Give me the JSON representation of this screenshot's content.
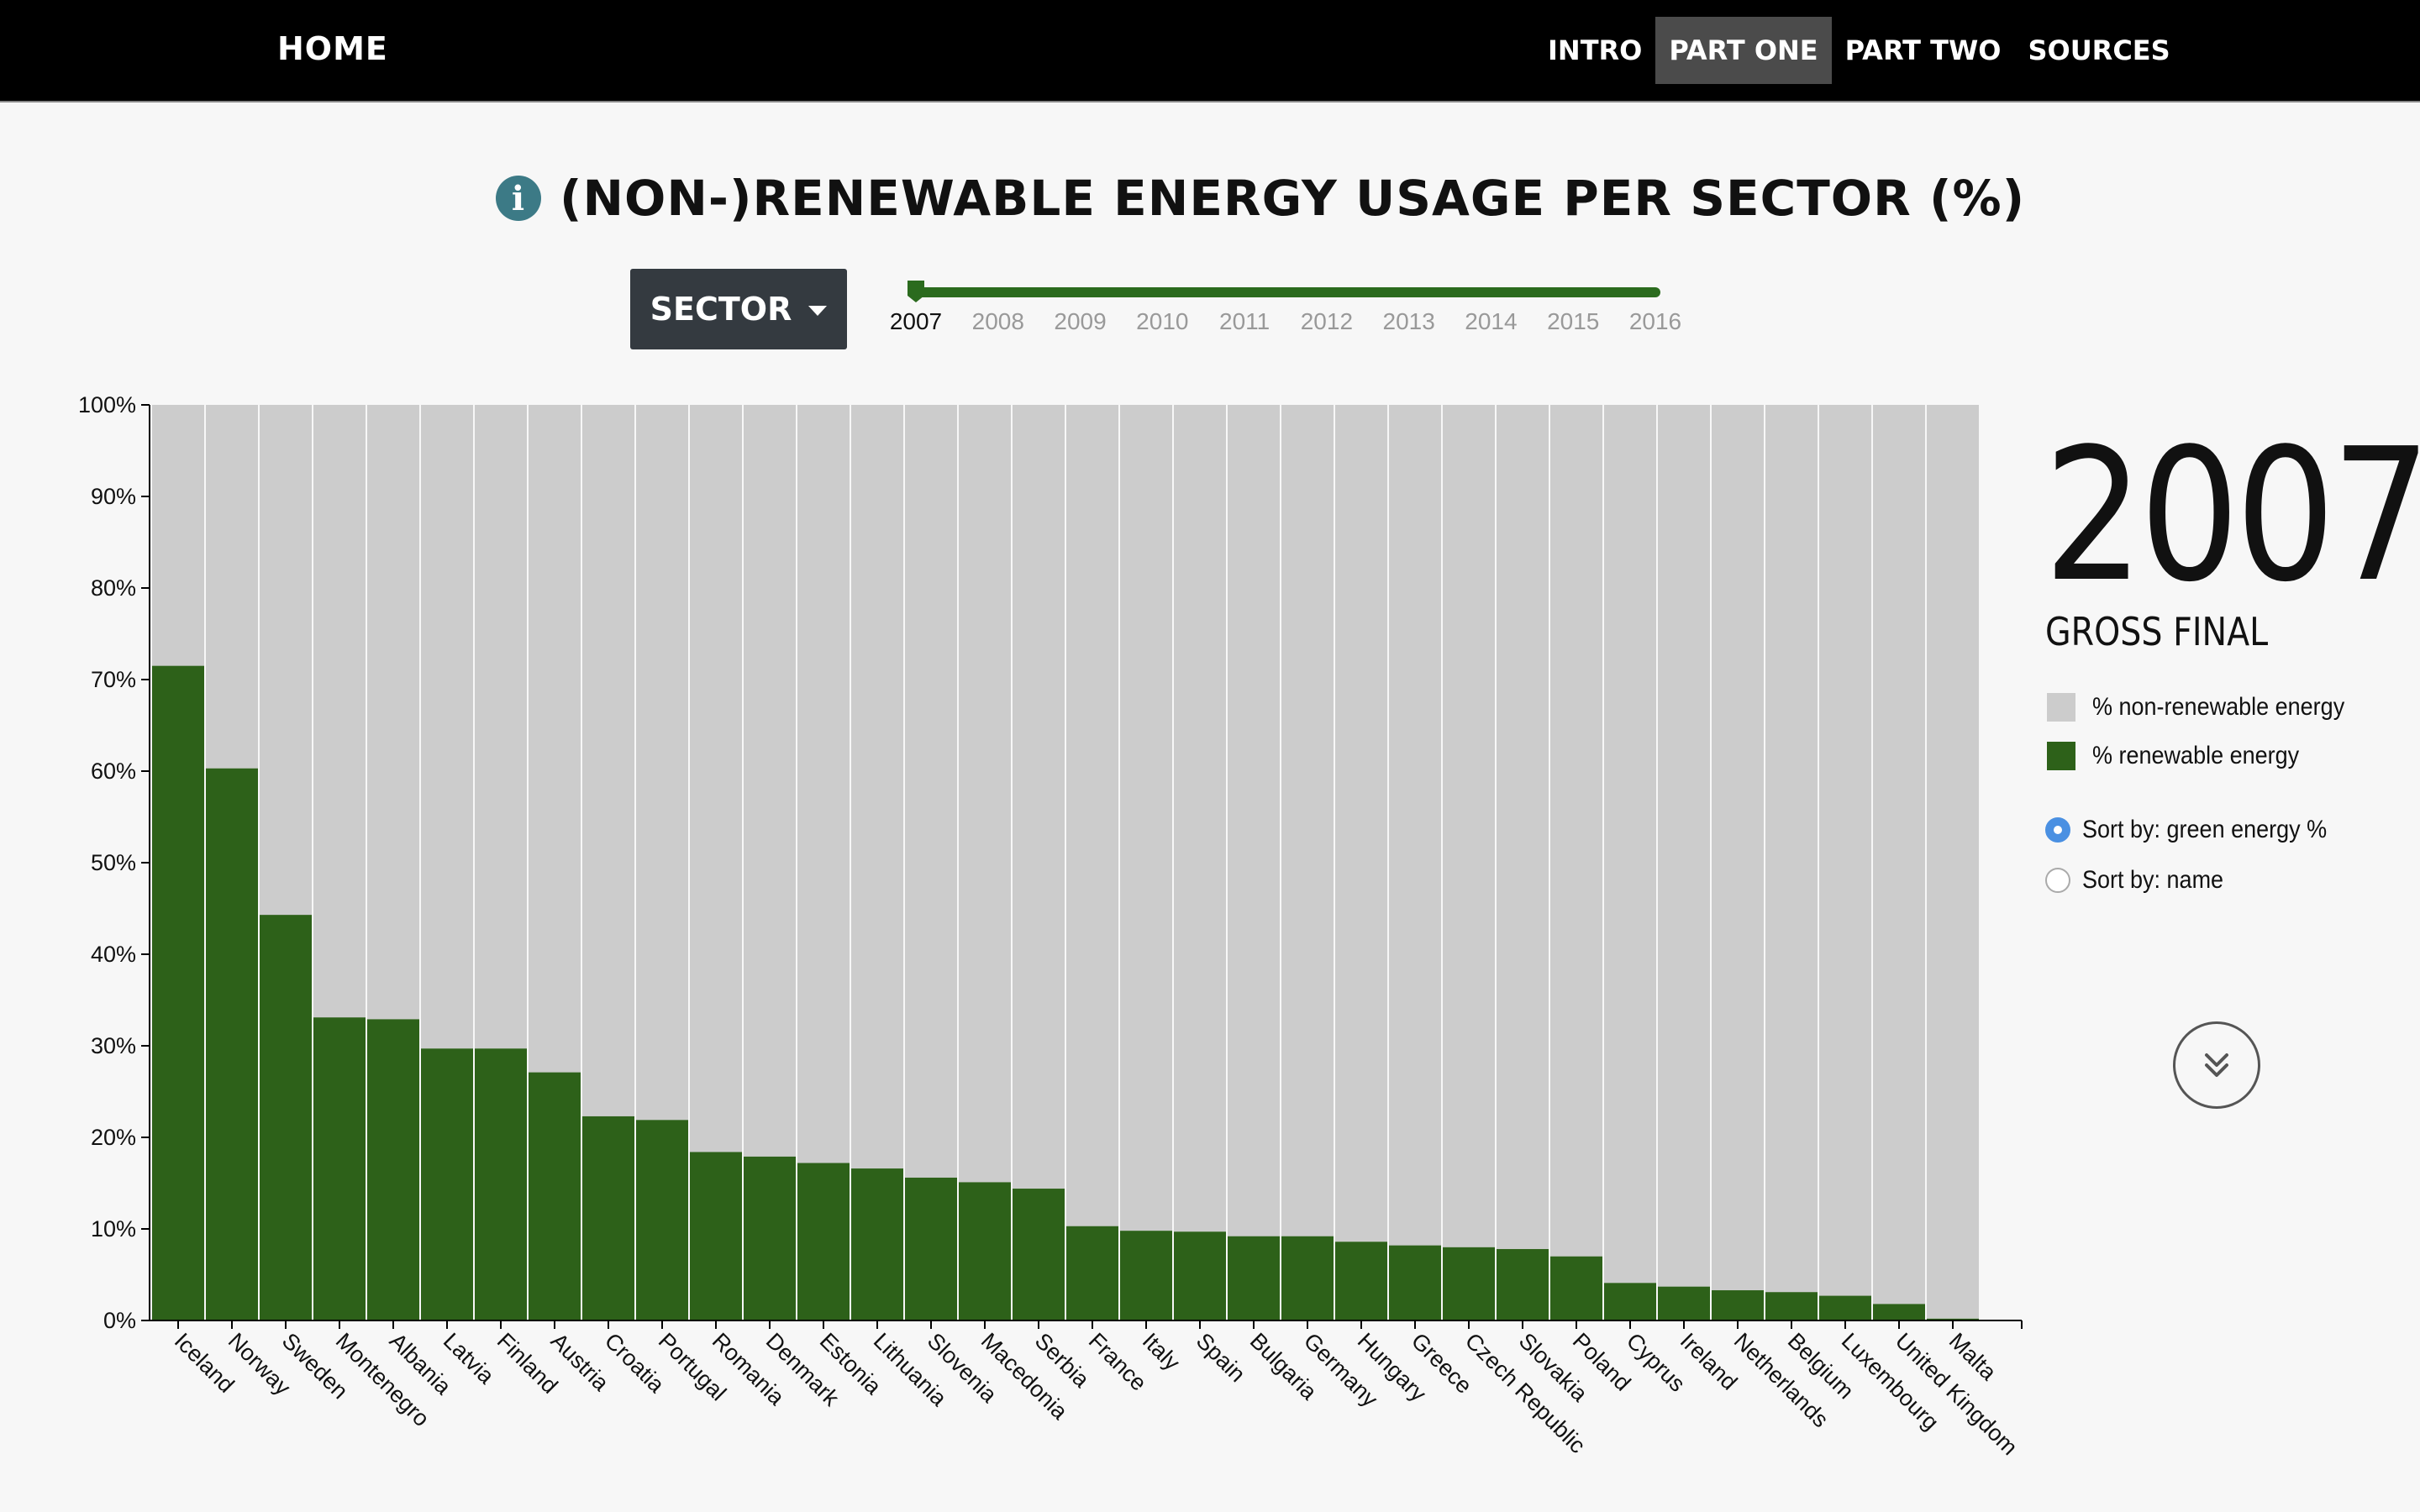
{
  "nav": {
    "home": "HOME",
    "items": [
      {
        "label": "INTRO",
        "active": false
      },
      {
        "label": "PART ONE",
        "active": true
      },
      {
        "label": "PART TWO",
        "active": false
      },
      {
        "label": "SOURCES",
        "active": false
      }
    ]
  },
  "page_title": "(NON-)RENEWABLE ENERGY USAGE PER SECTOR (%)",
  "info_icon": "info-icon",
  "sector_button": "SECTOR",
  "slider": {
    "years": [
      "2007",
      "2008",
      "2009",
      "2010",
      "2011",
      "2012",
      "2013",
      "2014",
      "2015",
      "2016"
    ],
    "selected": "2007",
    "color": "#2b6b1e"
  },
  "side_panel": {
    "year": "2007",
    "subtitle": "GROSS FINAL",
    "legend": [
      {
        "label": "% non-renewable energy",
        "color": "#cccccc"
      },
      {
        "label": "% renewable energy",
        "color": "#2d6119"
      }
    ],
    "sort_options": [
      {
        "label": "Sort by: green energy %",
        "checked": true
      },
      {
        "label": "Sort by: name",
        "checked": false
      }
    ],
    "scroll_icon": "double-chevron-down-icon"
  },
  "chart_data": {
    "type": "bar",
    "stacked": true,
    "categories": [
      "Iceland",
      "Norway",
      "Sweden",
      "Montenegro",
      "Albania",
      "Latvia",
      "Finland",
      "Austria",
      "Croatia",
      "Portugal",
      "Romania",
      "Denmark",
      "Estonia",
      "Lithuania",
      "Slovenia",
      "Macedonia",
      "Serbia",
      "France",
      "Italy",
      "Spain",
      "Bulgaria",
      "Germany",
      "Hungary",
      "Greece",
      "Czech Republic",
      "Slovakia",
      "Poland",
      "Cyprus",
      "Ireland",
      "Netherlands",
      "Belgium",
      "Luxembourg",
      "United Kingdom",
      "Malta"
    ],
    "series": [
      {
        "name": "% renewable energy",
        "color": "#2d6119",
        "values": [
          71.5,
          60.3,
          44.3,
          33.1,
          32.9,
          29.7,
          29.7,
          27.1,
          22.3,
          21.9,
          18.4,
          17.9,
          17.2,
          16.6,
          15.6,
          15.1,
          14.4,
          10.3,
          9.8,
          9.7,
          9.2,
          9.2,
          8.6,
          8.2,
          8.0,
          7.8,
          7.0,
          4.1,
          3.7,
          3.3,
          3.1,
          2.7,
          1.8,
          0.2
        ]
      },
      {
        "name": "% non-renewable energy",
        "color": "#cccccc",
        "values": [
          28.5,
          39.7,
          55.7,
          66.9,
          67.1,
          70.3,
          70.3,
          72.9,
          77.7,
          78.1,
          81.6,
          82.1,
          82.8,
          83.4,
          84.4,
          84.9,
          85.6,
          89.7,
          90.2,
          90.3,
          90.8,
          90.8,
          91.4,
          91.8,
          92.0,
          92.2,
          93.0,
          95.9,
          96.3,
          96.7,
          96.9,
          97.3,
          98.2,
          99.8
        ]
      }
    ],
    "yticks": [
      "0%",
      "10%",
      "20%",
      "30%",
      "40%",
      "50%",
      "60%",
      "70%",
      "80%",
      "90%",
      "100%"
    ],
    "ylim": [
      0,
      100
    ],
    "grid": false,
    "legend_position": "right"
  }
}
